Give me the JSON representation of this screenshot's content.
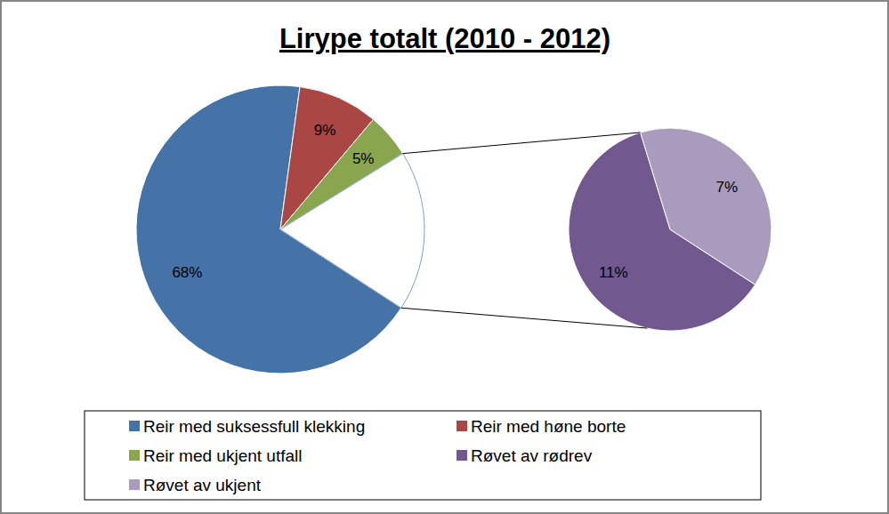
{
  "chart_data": {
    "type": "pie_of_pie",
    "title": "Lirype totalt (2010 - 2012)",
    "categories": [
      "Reir med suksessfull klekking",
      "Reir med høne borte",
      "Reir med ukjent utfall",
      "Røvet av rødrev",
      "Røvet av ukjent"
    ],
    "values": [
      68,
      9,
      5,
      11,
      7
    ],
    "value_labels": [
      "68%",
      "9%",
      "5%",
      "11%",
      "7%"
    ],
    "colors": [
      "#4572a7",
      "#aa4643",
      "#89a54e",
      "#71588f",
      "#a99bbd"
    ],
    "data_labels": true,
    "legend": "bottom"
  }
}
